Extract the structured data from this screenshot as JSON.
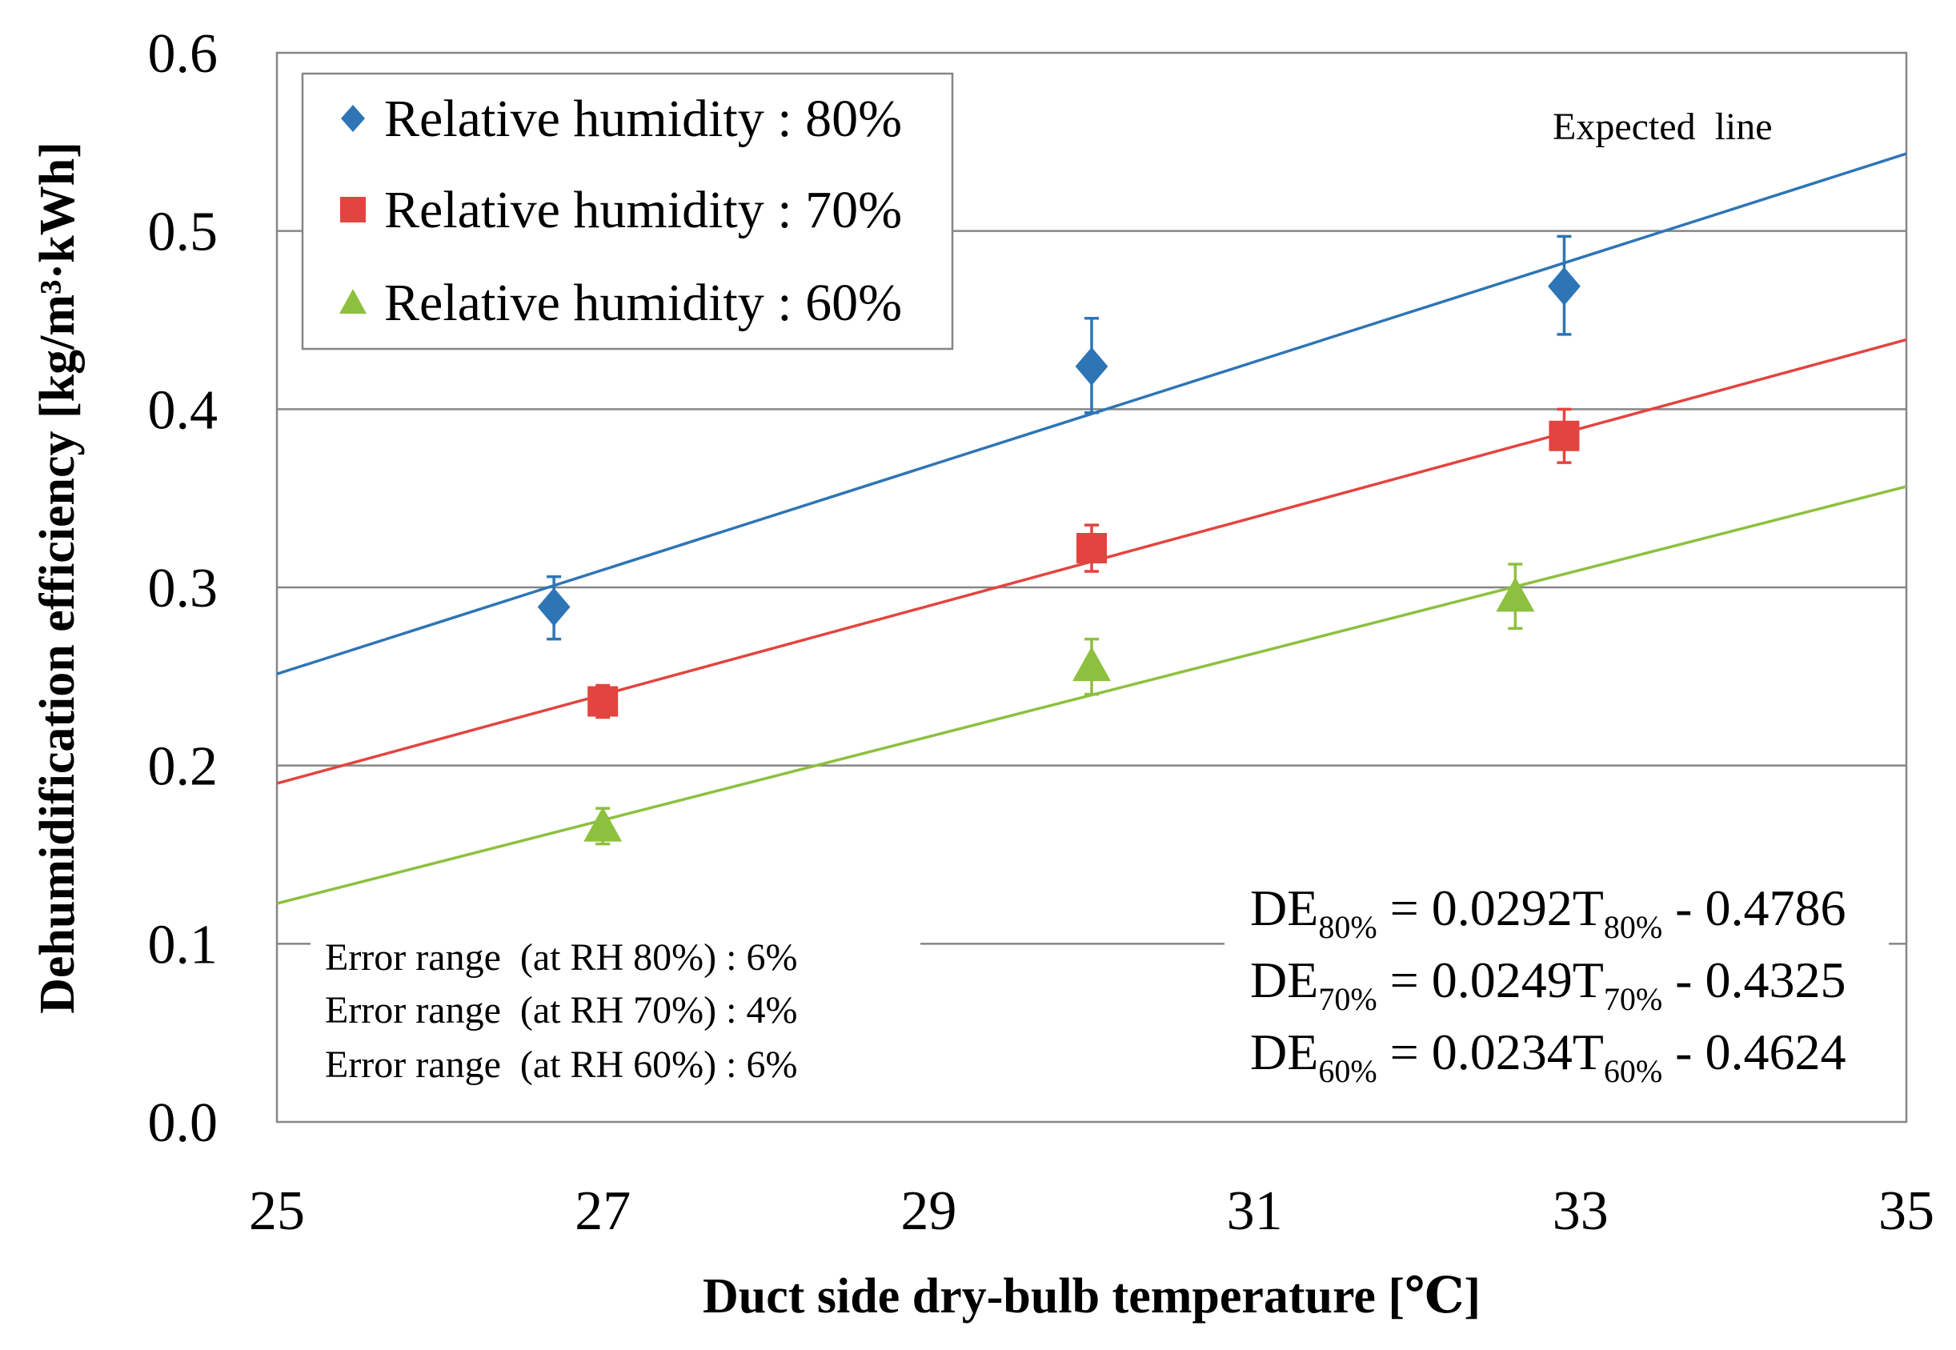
{
  "chart_data": {
    "type": "scatter",
    "title": "",
    "xlabel": "Duct side dry-bulb temperature [℃]",
    "ylabel": "Dehumidification efficiency [kg/m³·kWh]",
    "xlim": [
      25,
      35
    ],
    "ylim": [
      0.0,
      0.6
    ],
    "x_ticks": [
      "25",
      "27",
      "29",
      "31",
      "33",
      "35"
    ],
    "y_ticks": [
      "0.0",
      "0.1",
      "0.2",
      "0.3",
      "0.4",
      "0.5",
      "0.6"
    ],
    "grid": "horizontal",
    "legend_position": "top-left",
    "series": [
      {
        "name": "Relative humidity: 80%",
        "legend_label": "Relative humidity : 80%",
        "marker": "diamond",
        "color": "#2E75B6",
        "x": [
          26.7,
          30.0,
          32.9
        ],
        "y": [
          0.289,
          0.424,
          0.469
        ],
        "err_low": [
          0.018,
          0.026,
          0.027
        ],
        "err_high": [
          0.017,
          0.027,
          0.028
        ],
        "fit": {
          "slope": 0.0292,
          "intercept": -0.4786
        }
      },
      {
        "name": "Relative humidity: 70%",
        "legend_label": "Relative humidity : 70%",
        "marker": "square",
        "color": "#E2453F",
        "x": [
          27.0,
          30.0,
          32.9
        ],
        "y": [
          0.236,
          0.322,
          0.385
        ],
        "err_low": [
          0.009,
          0.013,
          0.015
        ],
        "err_high": [
          0.009,
          0.013,
          0.015
        ],
        "fit": {
          "slope": 0.0249,
          "intercept": -0.4325
        }
      },
      {
        "name": "Relative humidity: 60%",
        "legend_label": "Relative humidity : 60%",
        "marker": "triangle",
        "color": "#8DC03F",
        "x": [
          27.0,
          30.0,
          32.6
        ],
        "y": [
          0.166,
          0.256,
          0.295
        ],
        "err_low": [
          0.01,
          0.016,
          0.018
        ],
        "err_high": [
          0.01,
          0.015,
          0.018
        ],
        "fit": {
          "slope": 0.0234,
          "intercept": -0.4624
        }
      }
    ],
    "annotations": {
      "expected_line": "Expected  line",
      "error_ranges": [
        "Error range  (at RH 80%) : 6%",
        "Error range  (at RH 70%) : 4%",
        "Error range  (at RH 60%) : 6%"
      ],
      "equations": [
        {
          "a": "DE",
          "sub1": "80%",
          "b": " = 0.0292T",
          "sub2": "80%",
          "c": " - 0.4786"
        },
        {
          "a": "DE",
          "sub1": "70%",
          "b": " = 0.0249T",
          "sub2": "70%",
          "c": " - 0.4325"
        },
        {
          "a": "DE",
          "sub1": "60%",
          "b": " = 0.0234T",
          "sub2": "60%",
          "c": " - 0.4624"
        }
      ]
    }
  }
}
